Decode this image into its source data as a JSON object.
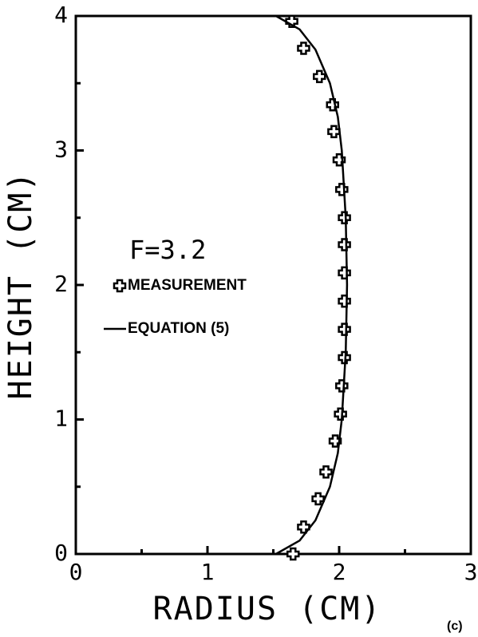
{
  "chart_data": {
    "type": "scatter",
    "xlabel": "RADIUS (CM)",
    "ylabel": "HEIGHT (CM)",
    "annotations": [
      "F=3.2",
      "(c)"
    ],
    "xlim": [
      0,
      3
    ],
    "xticks": [
      0,
      1,
      2,
      3
    ],
    "xminor": [
      0.5,
      1.5,
      2.5
    ],
    "ylim": [
      0,
      4
    ],
    "yticks": [
      0,
      1,
      2,
      3,
      4
    ],
    "yminor": [
      0.5,
      1.5,
      2.5,
      3.5
    ],
    "series": [
      {
        "name": "MEASUREMENT",
        "mode": "markers",
        "color": "#000000",
        "x": [
          1.65,
          1.73,
          1.84,
          1.9,
          1.97,
          2.01,
          2.02,
          2.04,
          2.04,
          2.04,
          2.04,
          2.04,
          2.04,
          2.02,
          2.0,
          1.96,
          1.95,
          1.85,
          1.73,
          1.64
        ],
        "values": [
          0,
          0.2,
          0.41,
          0.61,
          0.84,
          1.04,
          1.25,
          1.46,
          1.67,
          1.88,
          2.09,
          2.3,
          2.5,
          2.71,
          2.93,
          3.14,
          3.34,
          3.55,
          3.76,
          3.96
        ]
      },
      {
        "name": "EQUATION (5)",
        "mode": "lines",
        "color": "#000000",
        "x": [
          1.52,
          1.7,
          1.82,
          1.93,
          1.99,
          2.02,
          2.05,
          2.06,
          2.05,
          2.02,
          1.99,
          1.93,
          1.82,
          1.7,
          1.52
        ],
        "values": [
          0,
          0.1,
          0.25,
          0.5,
          0.75,
          1,
          1.5,
          2,
          2.5,
          3,
          3.25,
          3.5,
          3.75,
          3.9,
          4
        ]
      }
    ]
  }
}
